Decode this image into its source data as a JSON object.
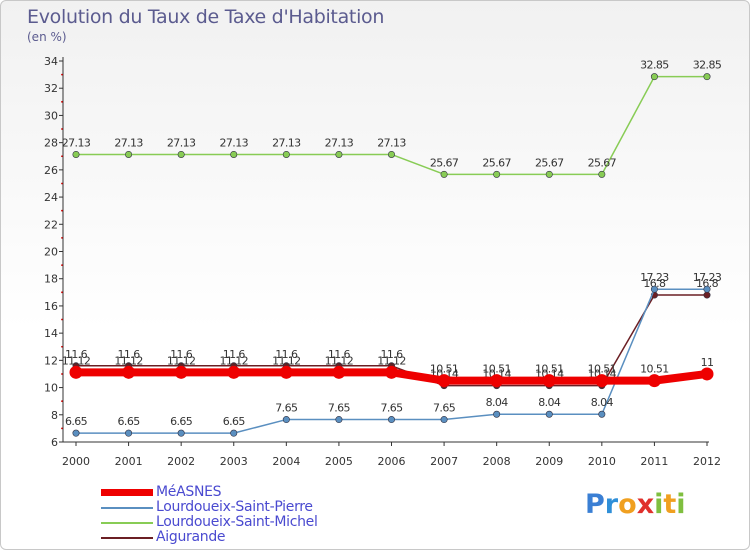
{
  "title": "Evolution du Taux de Taxe d'Habitation",
  "unit": "(en %)",
  "logo": {
    "letters": [
      "P",
      "r",
      "o",
      "x",
      "i",
      "t",
      "i"
    ],
    "colors": [
      "#3a7fd4",
      "#2f8fd8",
      "#f0a020",
      "#e0302c",
      "#7fbf3f",
      "#f0a020",
      "#7fbf3f"
    ]
  },
  "chart_data": {
    "type": "line",
    "title": "Evolution du Taux de Taxe d'Habitation",
    "ylabel": "(en %)",
    "xlabel": "",
    "ylim": [
      6,
      34
    ],
    "yticks": [
      6,
      8,
      10,
      12,
      14,
      16,
      18,
      20,
      22,
      24,
      26,
      28,
      30,
      32,
      34
    ],
    "categories": [
      "2000",
      "2001",
      "2002",
      "2003",
      "2004",
      "2005",
      "2006",
      "2007",
      "2008",
      "2009",
      "2010",
      "2011",
      "2012"
    ],
    "series": [
      {
        "name": "Aigurande",
        "color": "#6b1f24",
        "values": [
          11.6,
          11.6,
          11.6,
          11.6,
          11.6,
          11.6,
          11.6,
          10.14,
          10.14,
          10.14,
          10.14,
          16.8,
          16.8
        ],
        "labels": [
          "11.6",
          "11.6",
          "11.6",
          "11.6",
          "11.6",
          "11.6",
          "11.6",
          "10.14",
          "10.14",
          "10.14",
          "10.14",
          "16.8",
          "16.8"
        ]
      },
      {
        "name": "Lourdoueix-Saint-Michel",
        "color": "#88cc55",
        "values": [
          27.13,
          27.13,
          27.13,
          27.13,
          27.13,
          27.13,
          27.13,
          25.67,
          25.67,
          25.67,
          25.67,
          32.85,
          32.85
        ],
        "labels": [
          "27.13",
          "27.13",
          "27.13",
          "27.13",
          "27.13",
          "27.13",
          "27.13",
          "25.67",
          "25.67",
          "25.67",
          "25.67",
          "32.85",
          "32.85"
        ]
      },
      {
        "name": "Lourdoueix-Saint-Pierre",
        "color": "#5a8fc0",
        "values": [
          6.65,
          6.65,
          6.65,
          6.65,
          7.65,
          7.65,
          7.65,
          7.65,
          8.04,
          8.04,
          8.04,
          17.23,
          17.23
        ],
        "labels": [
          "6.65",
          "6.65",
          "6.65",
          "6.65",
          "7.65",
          "7.65",
          "7.65",
          "7.65",
          "8.04",
          "8.04",
          "8.04",
          "17.23",
          "17.23"
        ]
      },
      {
        "name": "MéASNES",
        "color": "#ee0000",
        "values": [
          11.12,
          11.12,
          11.12,
          11.12,
          11.12,
          11.12,
          11.12,
          10.51,
          10.51,
          10.51,
          10.51,
          10.51,
          11
        ],
        "labels": [
          "11.12",
          "11.12",
          "11.12",
          "11.12",
          "11.12",
          "11.12",
          "11.12",
          "10.51",
          "10.51",
          "10.51",
          "10.51",
          "10.51",
          "11"
        ]
      }
    ],
    "legend": [
      "MéASNES",
      "Lourdoueix-Saint-Pierre",
      "Lourdoueix-Saint-Michel",
      "Aigurande"
    ],
    "legend_position": "bottom-left",
    "grid": false
  }
}
